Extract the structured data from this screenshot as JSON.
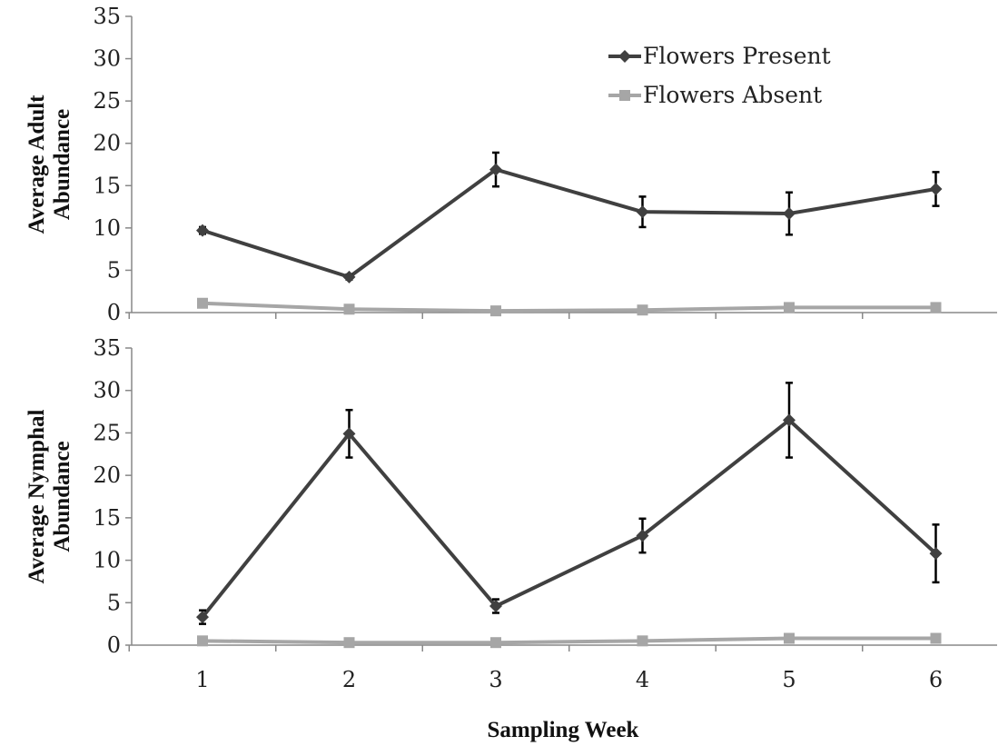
{
  "xlabel": "Sampling Week",
  "legend": {
    "placement": "top-right",
    "items": [
      {
        "label": "Flowers Present",
        "color": "#404040",
        "marker": "diamond"
      },
      {
        "label": "Flowers Absent",
        "color": "#a6a6a6",
        "marker": "square"
      }
    ]
  },
  "chart_data": [
    {
      "type": "line",
      "ylabel_lines": [
        "Average Adult",
        "Abundance"
      ],
      "x": [
        1,
        2,
        3,
        4,
        5,
        6
      ],
      "ylim": [
        0,
        35
      ],
      "yticks": [
        0,
        5,
        10,
        15,
        20,
        25,
        30,
        35
      ],
      "series": [
        {
          "name": "Flowers Present",
          "color": "#404040",
          "marker": "diamond",
          "values": [
            9.7,
            4.2,
            16.9,
            11.9,
            11.7,
            14.6
          ],
          "errors": [
            0.4,
            0.3,
            2.0,
            1.8,
            2.5,
            2.0
          ]
        },
        {
          "name": "Flowers Absent",
          "color": "#a6a6a6",
          "marker": "square",
          "values": [
            1.1,
            0.4,
            0.2,
            0.3,
            0.6,
            0.6
          ],
          "errors": [
            0,
            0,
            0,
            0,
            0,
            0
          ]
        }
      ]
    },
    {
      "type": "line",
      "ylabel_lines": [
        "Average Nymphal",
        "Abundance"
      ],
      "x": [
        1,
        2,
        3,
        4,
        5,
        6
      ],
      "xtick_labels": [
        "1",
        "2",
        "3",
        "4",
        "5",
        "6"
      ],
      "ylim": [
        0,
        35
      ],
      "yticks": [
        0,
        5,
        10,
        15,
        20,
        25,
        30,
        35
      ],
      "series": [
        {
          "name": "Flowers Present",
          "color": "#404040",
          "marker": "diamond",
          "values": [
            3.3,
            24.9,
            4.6,
            12.9,
            26.5,
            10.8
          ],
          "errors": [
            0.8,
            2.8,
            0.8,
            2.0,
            4.4,
            3.4
          ]
        },
        {
          "name": "Flowers Absent",
          "color": "#a6a6a6",
          "marker": "square",
          "values": [
            0.5,
            0.3,
            0.3,
            0.5,
            0.8,
            0.8
          ],
          "errors": [
            0,
            0,
            0,
            0,
            0,
            0
          ]
        }
      ]
    }
  ]
}
